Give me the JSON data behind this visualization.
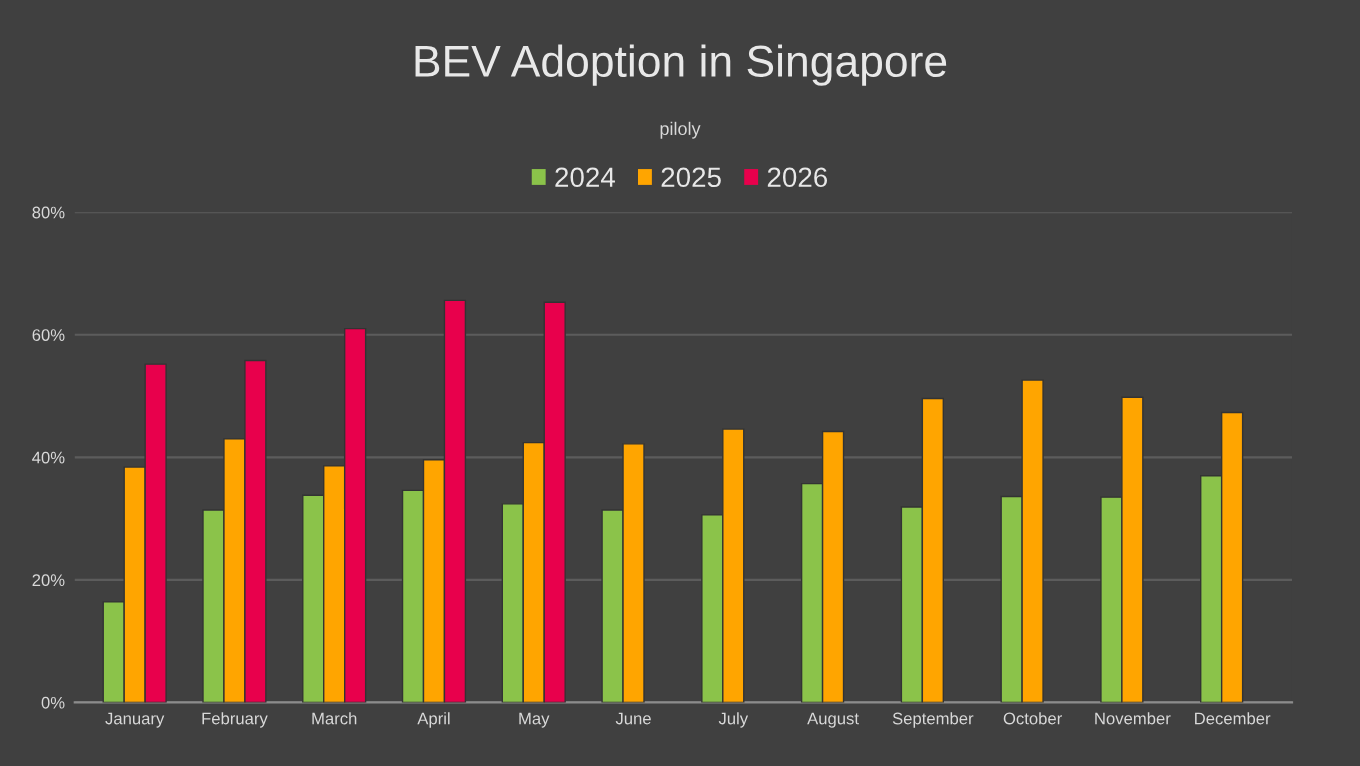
{
  "chart_data": {
    "type": "bar",
    "title": "BEV Adoption in Singapore",
    "subtitle": "piloly",
    "categories": [
      "January",
      "February",
      "March",
      "April",
      "May",
      "June",
      "July",
      "August",
      "September",
      "October",
      "November",
      "December"
    ],
    "series": [
      {
        "name": "2024",
        "color": "#8bc34a",
        "values": [
          16.4,
          31.4,
          33.8,
          34.6,
          32.4,
          31.4,
          30.6,
          35.7,
          31.9,
          33.6,
          33.5,
          37.0
        ]
      },
      {
        "name": "2025",
        "color": "#ffa500",
        "values": [
          38.4,
          43.0,
          38.6,
          39.6,
          42.4,
          42.2,
          44.6,
          44.2,
          49.6,
          52.6,
          49.8,
          47.3
        ]
      },
      {
        "name": "2026",
        "color": "#e8004c",
        "values": [
          55.2,
          55.8,
          61.0,
          65.6,
          65.3,
          null,
          null,
          null,
          null,
          null,
          null,
          null
        ]
      }
    ],
    "ylim": [
      0,
      80
    ],
    "yticks": [
      {
        "value": 0,
        "label": "0%"
      },
      {
        "value": 20,
        "label": "20%"
      },
      {
        "value": 40,
        "label": "40%"
      },
      {
        "value": 60,
        "label": "60%"
      },
      {
        "value": 80,
        "label": "80%"
      }
    ],
    "grid": "y",
    "legend": "top"
  }
}
